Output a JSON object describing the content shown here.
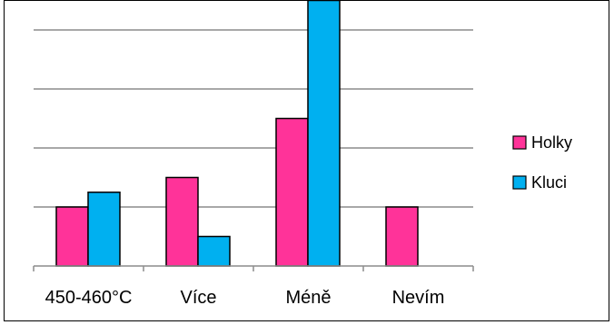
{
  "chart_data": {
    "type": "bar",
    "categories": [
      "450-460°C",
      "Více",
      "Méně",
      "Nevím"
    ],
    "series": [
      {
        "name": "Holky",
        "color": "#FF3399",
        "values": [
          2,
          3,
          5,
          2
        ]
      },
      {
        "name": "Kluci",
        "color": "#00B0F0",
        "values": [
          2.5,
          1,
          9,
          0
        ]
      }
    ],
    "ylim": [
      0,
      10
    ],
    "grid": true,
    "legend": "right"
  }
}
